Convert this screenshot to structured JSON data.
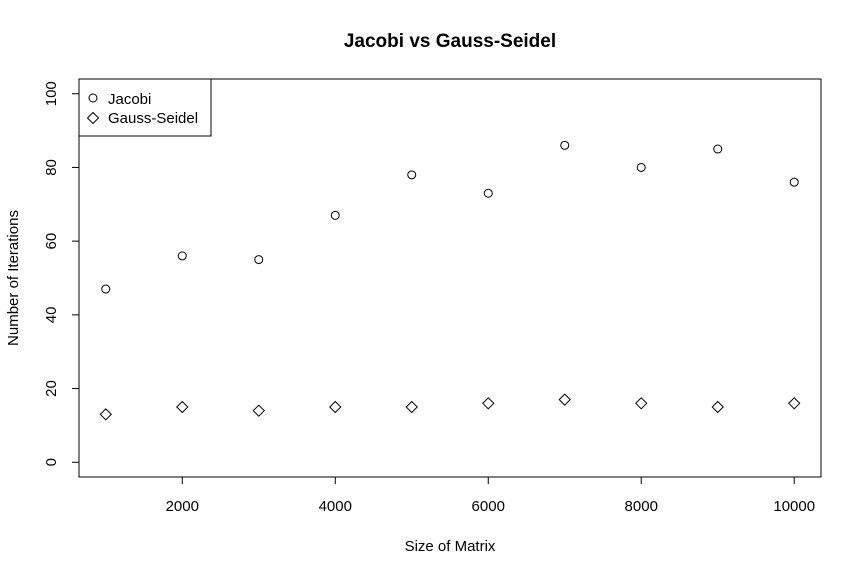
{
  "chart_data": {
    "type": "scatter",
    "title": "Jacobi vs Gauss-Seidel",
    "xlabel": "Size of Matrix",
    "ylabel": "Number of Iterations",
    "xlim": [
      650,
      10350
    ],
    "ylim": [
      -4,
      104
    ],
    "x_ticks": [
      2000,
      4000,
      6000,
      8000,
      10000
    ],
    "y_ticks": [
      0,
      20,
      40,
      60,
      80,
      100
    ],
    "x_tick_labels": [
      "2000",
      "4000",
      "6000",
      "8000",
      "10000"
    ],
    "y_tick_labels": [
      "0",
      "20",
      "40",
      "60",
      "80",
      "100"
    ],
    "x": [
      1000,
      2000,
      3000,
      4000,
      5000,
      6000,
      7000,
      8000,
      9000,
      10000
    ],
    "series": [
      {
        "name": "Jacobi",
        "marker": "circle",
        "values": [
          47,
          56,
          55,
          67,
          78,
          73,
          86,
          80,
          85,
          76
        ]
      },
      {
        "name": "Gauss-Seidel",
        "marker": "diamond",
        "values": [
          13,
          15,
          14,
          15,
          15,
          16,
          17,
          16,
          15,
          16
        ]
      }
    ],
    "legend_position": "top-left",
    "grid": false,
    "colors": {
      "marker": "#000000",
      "axis": "#000000",
      "background": "#ffffff"
    }
  }
}
